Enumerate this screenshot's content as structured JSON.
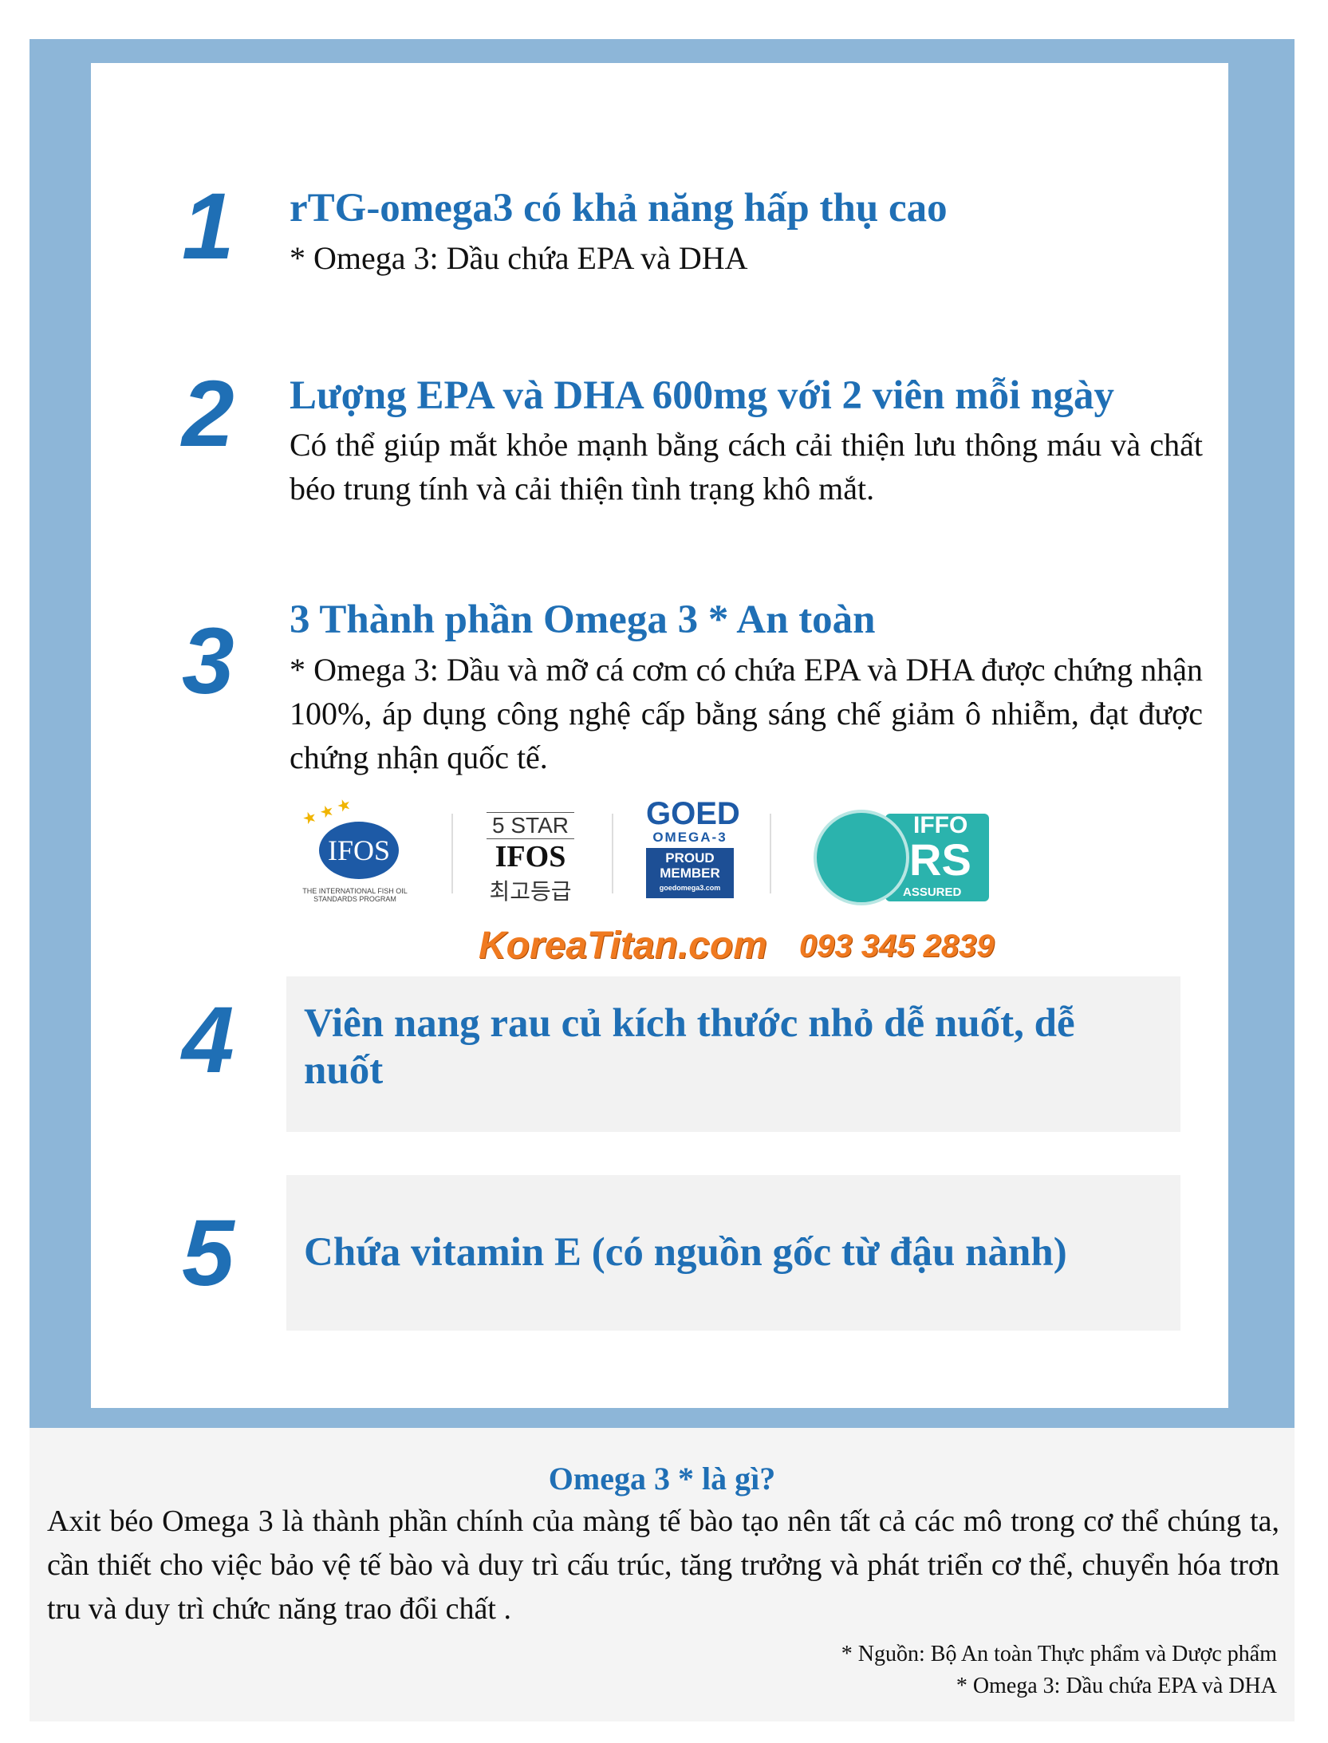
{
  "items": [
    {
      "num": "1",
      "heading": "rTG-omega3 có khả năng hấp thụ cao",
      "body": "* Omega 3: Dầu chứa EPA và DHA"
    },
    {
      "num": "2",
      "heading": "Lượng EPA và DHA 600mg với 2 viên mỗi ngày",
      "body": " Có thể giúp mắt khỏe mạnh bằng cách cải thiện lưu thông máu và chất béo trung tính và cải thiện tình trạng khô mắt."
    },
    {
      "num": "3",
      "heading": "3 Thành phần Omega 3 * An toàn",
      "body": " * Omega 3: Dầu và mỡ cá cơm có chứa EPA và DHA được chứng nhận 100%, áp dụng công nghệ cấp bằng sáng chế giảm ô nhiễm, đạt được chứng nhận quốc tế."
    },
    {
      "num": "4",
      "heading": "Viên nang rau củ kích thước nhỏ dễ nuốt, dễ nuốt"
    },
    {
      "num": "5",
      "heading": "Chứa vitamin E (có nguồn gốc từ đậu nành)"
    }
  ],
  "logos": {
    "ifos": {
      "text": "IFOS",
      "caption": "THE INTERNATIONAL FISH OIL STANDARDS PROGRAM"
    },
    "five_star": {
      "line1": "5 STAR",
      "line2": "IFOS",
      "line3": "최고등급"
    },
    "goed": {
      "line1": "GOED",
      "line2": "OMEGA-3",
      "line3": "PROUD",
      "line4": "MEMBER",
      "line5": "goedomega3.com"
    },
    "iffo": {
      "line1": "IFFO",
      "line2": "RS",
      "line3": "ASSURED"
    }
  },
  "watermark": {
    "site": "KoreaTitan.com",
    "phone": "093 345 2839"
  },
  "bottom": {
    "title": "Omega 3 * là gì?",
    "body": "Axit béo Omega 3 là thành phần chính của màng tế bào tạo nên tất cả các mô trong cơ thể chúng ta, cần thiết cho việc bảo vệ tế bào và duy trì cấu trúc, tăng trưởng và phát triển cơ thể, chuyển hóa trơn tru và duy trì chức năng trao đổi chất .",
    "source": "* Nguồn: Bộ An toàn Thực phẩm và Dược phẩm",
    "note": "* Omega 3: Dầu chứa EPA và DHA"
  },
  "colors": {
    "frame": "#8db6d8",
    "accent": "#1f6fb5",
    "watermark": "#f07a20"
  }
}
